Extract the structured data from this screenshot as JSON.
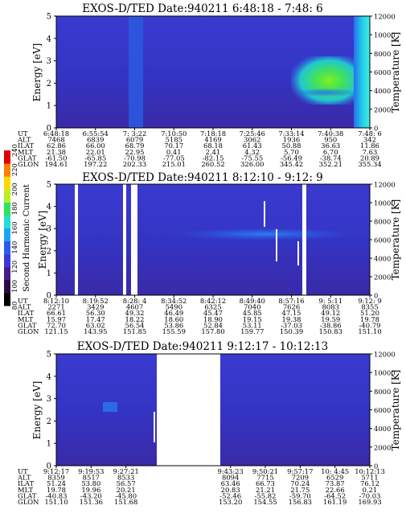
{
  "chart_data": [
    {
      "type": "heatmap",
      "title": "EXOS-D/TED   Date:940211  6:48:18 - 7:48: 6",
      "ylabel": "Energy [eV]",
      "y2label": "Temperature [K]",
      "ylim": [
        0,
        5
      ],
      "y2lim": [
        0,
        12000
      ],
      "yticks": [
        "0",
        "1",
        "2",
        "3",
        "4",
        "5"
      ],
      "y2ticks": [
        "0",
        "2000",
        "4000",
        "6000",
        "8000",
        "10000",
        "12000"
      ],
      "table_rows": [
        "UT",
        "ALT",
        "ILAT",
        "MLT",
        "GLAT",
        "GLON"
      ],
      "columns": [
        {
          "UT": "6:48:18",
          "ALT": "7468",
          "ILAT": "62.86",
          "MLT": "21.38",
          "GLAT": "-61.50",
          "GLON": "194.61"
        },
        {
          "UT": "6:55:54",
          "ALT": "6839",
          "ILAT": "66.00",
          "MLT": "22.01",
          "GLAT": "-65.85",
          "GLON": "197.22"
        },
        {
          "UT": "7: 3:22",
          "ALT": "6079",
          "ILAT": "68.79",
          "MLT": "22.95",
          "GLAT": "-70.98",
          "GLON": "202.33"
        },
        {
          "UT": "7:10:50",
          "ALT": "5185",
          "ILAT": "70.17",
          "MLT": "0.41",
          "GLAT": "-77.05",
          "GLON": "215.01"
        },
        {
          "UT": "7:18:18",
          "ALT": "4169",
          "ILAT": "68.18",
          "MLT": "2.41",
          "GLAT": "-82.15",
          "GLON": "260.52"
        },
        {
          "UT": "7:25:46",
          "ALT": "3062",
          "ILAT": "61.43",
          "MLT": "4.32",
          "GLAT": "-75.55",
          "GLON": "326.00"
        },
        {
          "UT": "7:33:14",
          "ALT": "1936",
          "ILAT": "50.88",
          "MLT": "5.70",
          "GLAT": "-56.49",
          "GLON": "345.42"
        },
        {
          "UT": "7:40:38",
          "ALT": "950",
          "ILAT": "36.63",
          "MLT": "6.70",
          "GLAT": "-38.74",
          "GLON": "352.21"
        },
        {
          "UT": "7:48: 6",
          "ALT": "342",
          "ILAT": "11.86",
          "MLT": "7.63",
          "GLAT": "20.89",
          "GLON": "355.34"
        }
      ]
    },
    {
      "type": "heatmap",
      "title": "EXOS-D/TED   Date:940211  8:12:10 - 9:12: 9",
      "ylabel": "Energy [eV]",
      "y2label": "Temperature [K]",
      "ylim": [
        0,
        5
      ],
      "y2lim": [
        0,
        12000
      ],
      "yticks": [
        "0",
        "1",
        "2",
        "3",
        "4",
        "5"
      ],
      "y2ticks": [
        "0",
        "2000",
        "4000",
        "6000",
        "8000",
        "10000",
        "12000"
      ],
      "table_rows": [
        "UT",
        "ALT",
        "ILAT",
        "MLT",
        "GLAT",
        "GLON"
      ],
      "columns": [
        {
          "UT": "8:12:10",
          "ALT": "2271",
          "ILAT": "66.61",
          "MLT": "15.97",
          "GLAT": "72.70",
          "GLON": "121.15"
        },
        {
          "UT": "8:19:52",
          "ALT": "3429",
          "ILAT": "56.30",
          "MLT": "17.47",
          "GLAT": "63.02",
          "GLON": "143.95"
        },
        {
          "UT": "8:28: 4",
          "ALT": "4607",
          "ILAT": "49.32",
          "MLT": "18.22",
          "GLAT": "56.54",
          "GLON": "151.85"
        },
        {
          "UT": "8:34:52",
          "ALT": "5490",
          "ILAT": "46.49",
          "MLT": "18.60",
          "GLAT": "53.86",
          "GLON": "155.59"
        },
        {
          "UT": "8:42:12",
          "ALT": "6325",
          "ILAT": "45.47",
          "MLT": "18.90",
          "GLAT": "52.84",
          "GLON": "157.80"
        },
        {
          "UT": "8:49:40",
          "ALT": "7040",
          "ILAT": "45.85",
          "MLT": "19.15",
          "GLAT": "53.11",
          "GLON": "159.77"
        },
        {
          "UT": "8:57:16",
          "ALT": "7626",
          "ILAT": "47.15",
          "MLT": "19.38",
          "GLAT": "-37.03",
          "GLON": "150.39"
        },
        {
          "UT": "9: 5:11",
          "ALT": "8083",
          "ILAT": "49.12",
          "MLT": "19.59",
          "GLAT": "-38.86",
          "GLON": "150.83"
        },
        {
          "UT": "9:12: 9",
          "ALT": "8355",
          "ILAT": "51.20",
          "MLT": "19.78",
          "GLAT": "-40.79",
          "GLON": "151.10"
        }
      ]
    },
    {
      "type": "heatmap",
      "title": "EXOS-D/TED   Date:940211  9:12:17 - 10:12:13",
      "ylabel": "Energy [eV]",
      "y2label": "Temperature [K]",
      "ylim": [
        0,
        5
      ],
      "y2lim": [
        0,
        12000
      ],
      "yticks": [
        "0",
        "1",
        "2",
        "3",
        "4",
        "5"
      ],
      "y2ticks": [
        "0",
        "2000",
        "4000",
        "6000",
        "8000",
        "10000",
        "12000"
      ],
      "table_rows": [
        "UT",
        "ALT",
        "ILAT",
        "MLT",
        "GLAT",
        "GLON"
      ],
      "columns": [
        {
          "UT": "9:12:17",
          "ALT": "8359",
          "ILAT": "51.24",
          "MLT": "19.78",
          "GLAT": "-40.83",
          "GLON": "151.10"
        },
        {
          "UT": "9:19:53",
          "ALT": "8517",
          "ILAT": "53.80",
          "MLT": "19.96",
          "GLAT": "-43.20",
          "GLON": "151.36"
        },
        {
          "UT": "9:27:21",
          "ALT": "8533",
          "ILAT": "56.57",
          "MLT": "20.21",
          "GLAT": "-45.80",
          "GLON": "151.68"
        },
        {
          "UT": "",
          "ALT": "",
          "ILAT": "",
          "MLT": "",
          "GLAT": "",
          "GLON": ""
        },
        {
          "UT": "",
          "ALT": "",
          "ILAT": "",
          "MLT": "",
          "GLAT": "",
          "GLON": ""
        },
        {
          "UT": "9:43:23",
          "ALT": "8094",
          "ILAT": "63.46",
          "MLT": "20.83",
          "GLAT": "-52.46",
          "GLON": "153.20"
        },
        {
          "UT": "9:50:21",
          "ALT": "7715",
          "ILAT": "66.73",
          "MLT": "21.21",
          "GLAT": "-55.82",
          "GLON": "154.55"
        },
        {
          "UT": "9:57:17",
          "ALT": "7209",
          "ILAT": "70.24",
          "MLT": "21.75",
          "GLAT": "-59.70",
          "GLON": "156.83"
        },
        {
          "UT": "10: 4:45",
          "ALT": "6529",
          "ILAT": "73.87",
          "MLT": "22.66",
          "GLAT": "-64.52",
          "GLON": "161.19"
        },
        {
          "UT": "10:12:13",
          "ALT": "5711",
          "ILAT": "76.12",
          "MLT": "0.21",
          "GLAT": "-70.03",
          "GLON": "169.93"
        }
      ]
    }
  ],
  "colorbar": {
    "label": "Second Harmonic Current",
    "ticks": [
      "80",
      "100",
      "120",
      "140",
      "160",
      "180",
      "200",
      "220",
      "240"
    ],
    "colors": [
      "#000000",
      "#2a0a44",
      "#4a1a8a",
      "#3a3ad8",
      "#2a5cf0",
      "#1aa8f0",
      "#20e0d0",
      "#30e060",
      "#b8f020",
      "#ffd800",
      "#ff8000",
      "#e00000"
    ]
  }
}
